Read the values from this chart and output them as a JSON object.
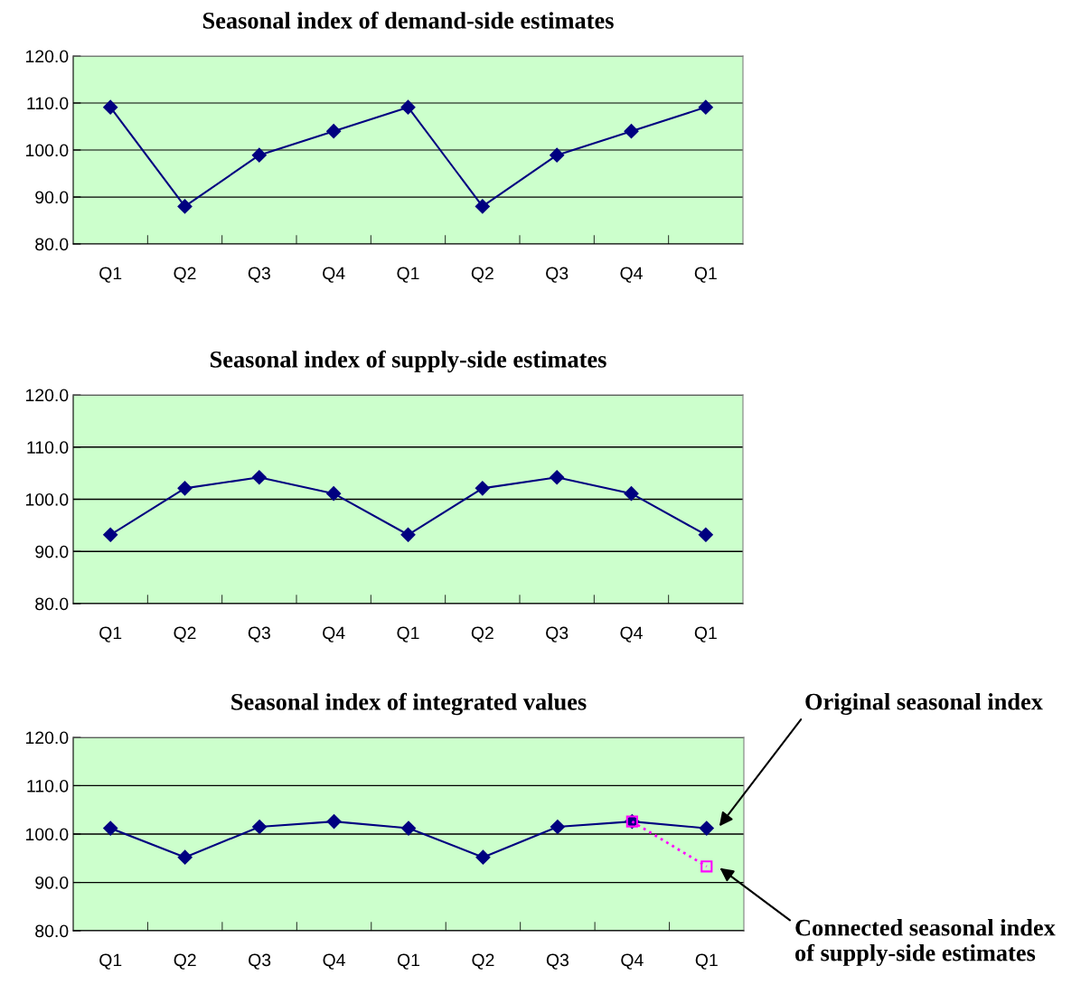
{
  "chart_data": [
    {
      "type": "line",
      "title": "Seasonal index of demand-side estimates",
      "categories": [
        "Q1",
        "Q2",
        "Q3",
        "Q4",
        "Q1",
        "Q2",
        "Q3",
        "Q4",
        "Q1"
      ],
      "series": [
        {
          "color": "#000080",
          "marker": "diamond",
          "values": [
            109.1,
            88.0,
            98.9,
            104.0,
            109.1,
            88.0,
            98.9,
            104.0,
            109.1
          ]
        }
      ],
      "ylim": [
        80,
        120
      ],
      "yticks": [
        {
          "value": 80,
          "label": "80.0"
        },
        {
          "value": 90,
          "label": "90.0"
        },
        {
          "value": 100,
          "label": "100.0"
        },
        {
          "value": 110,
          "label": "110.0"
        },
        {
          "value": 120,
          "label": "120.0"
        }
      ],
      "grid": "y",
      "line_style": "solid"
    },
    {
      "type": "line",
      "title": "Seasonal index of supply-side estimates",
      "categories": [
        "Q1",
        "Q2",
        "Q3",
        "Q4",
        "Q1",
        "Q2",
        "Q3",
        "Q4",
        "Q1"
      ],
      "series": [
        {
          "color": "#000080",
          "marker": "diamond",
          "values": [
            93.2,
            102.1,
            104.2,
            101.1,
            93.2,
            102.1,
            104.2,
            101.1,
            93.2
          ]
        }
      ],
      "ylim": [
        80,
        120
      ],
      "yticks": [
        {
          "value": 80,
          "label": "80.0"
        },
        {
          "value": 90,
          "label": "90.0"
        },
        {
          "value": 100,
          "label": "100.0"
        },
        {
          "value": 110,
          "label": "110.0"
        },
        {
          "value": 120,
          "label": "120.0"
        }
      ],
      "grid": "y",
      "line_style": "solid"
    },
    {
      "type": "line",
      "title": "Seasonal index of integrated values",
      "categories": [
        "Q1",
        "Q2",
        "Q3",
        "Q4",
        "Q1",
        "Q2",
        "Q3",
        "Q4",
        "Q1"
      ],
      "series": [
        {
          "color": "#000080",
          "marker": "diamond",
          "line_style": "solid",
          "values": [
            101.2,
            95.2,
            101.5,
            102.6,
            101.2,
            95.2,
            101.5,
            102.6,
            101.2
          ]
        },
        {
          "color": "#ff00ff",
          "marker": "square",
          "line_style": "dotted",
          "values": [
            null,
            null,
            null,
            null,
            null,
            null,
            null,
            102.6,
            93.3
          ]
        }
      ],
      "annotations": [
        "Original seasonal index",
        "Connected seasonal index of supply-side estimates"
      ],
      "ylim": [
        80,
        120
      ],
      "yticks": [
        {
          "value": 80,
          "label": "80.0"
        },
        {
          "value": 90,
          "label": "90.0"
        },
        {
          "value": 100,
          "label": "100.0"
        },
        {
          "value": 110,
          "label": "110.0"
        },
        {
          "value": 120,
          "label": "120.0"
        }
      ],
      "grid": "y"
    }
  ]
}
